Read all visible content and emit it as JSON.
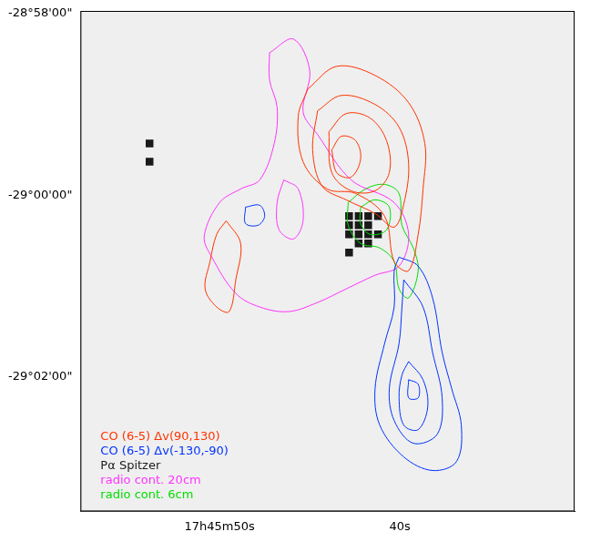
{
  "chart_data": {
    "type": "contour",
    "xlim": [
      57.71,
      30.32
    ],
    "ylim": [
      -1743.48,
      -1737.97
    ],
    "xticks": [
      {
        "value": 50,
        "label": "17h45m50s"
      },
      {
        "value": 40,
        "label": "40s"
      }
    ],
    "yticks": [
      {
        "value": -1738,
        "label": "-28°58'00\""
      },
      {
        "value": -1740,
        "label": "-29°00'00\""
      },
      {
        "value": -1742,
        "label": "-29°02'00\""
      }
    ],
    "grid": false,
    "legend": "bottom left",
    "series": [
      {
        "name": "CO (6-5) Δv(90,130)",
        "color": "#ff3300",
        "type": "contour",
        "values": [
          [
            [
              45.11,
              -1738.83
            ],
            [
              43.51,
              -1738.58
            ],
            [
              41.38,
              -1738.68
            ],
            [
              39.52,
              -1738.98
            ],
            [
              38.62,
              -1739.43
            ],
            [
              38.72,
              -1739.93
            ],
            [
              38.99,
              -1740.43
            ],
            [
              39.52,
              -1740.83
            ],
            [
              40.32,
              -1740.73
            ],
            [
              40.85,
              -1740.23
            ],
            [
              42.45,
              -1739.98
            ],
            [
              44.04,
              -1739.93
            ],
            [
              45.37,
              -1739.63
            ],
            [
              45.64,
              -1739.13
            ]
          ],
          [
            [
              44.57,
              -1739.07
            ],
            [
              43.24,
              -1738.9
            ],
            [
              41.38,
              -1739.0
            ],
            [
              40.05,
              -1739.25
            ],
            [
              39.52,
              -1739.65
            ],
            [
              39.79,
              -1740.1
            ],
            [
              40.32,
              -1740.35
            ],
            [
              41.38,
              -1740.2
            ],
            [
              42.98,
              -1740.05
            ],
            [
              44.31,
              -1739.9
            ],
            [
              44.84,
              -1739.5
            ]
          ],
          [
            [
              43.94,
              -1739.3
            ],
            [
              42.98,
              -1739.1
            ],
            [
              41.65,
              -1739.15
            ],
            [
              40.74,
              -1739.4
            ],
            [
              40.59,
              -1739.75
            ],
            [
              41.38,
              -1739.95
            ],
            [
              42.71,
              -1739.95
            ],
            [
              43.78,
              -1739.75
            ]
          ],
          [
            [
              43.78,
              -1739.5
            ],
            [
              43.24,
              -1739.35
            ],
            [
              42.45,
              -1739.4
            ],
            [
              42.18,
              -1739.6
            ],
            [
              42.71,
              -1739.8
            ],
            [
              43.51,
              -1739.75
            ]
          ],
          [
            [
              49.63,
              -1740.28
            ],
            [
              48.83,
              -1740.53
            ],
            [
              49.1,
              -1740.93
            ],
            [
              49.47,
              -1741.28
            ],
            [
              50.16,
              -1741.23
            ],
            [
              50.8,
              -1741.03
            ],
            [
              50.53,
              -1740.73
            ],
            [
              50.16,
              -1740.43
            ]
          ]
        ]
      },
      {
        "name": "CO (6-5) Δv(-130,-90)",
        "color": "#0033ff",
        "type": "contour",
        "values": [
          [
            [
              40.05,
              -1740.68
            ],
            [
              38.99,
              -1740.78
            ],
            [
              38.19,
              -1741.13
            ],
            [
              37.66,
              -1741.73
            ],
            [
              37.13,
              -1742.13
            ],
            [
              36.6,
              -1742.53
            ],
            [
              36.86,
              -1742.93
            ],
            [
              38.19,
              -1743.03
            ],
            [
              39.79,
              -1742.88
            ],
            [
              41.12,
              -1742.53
            ],
            [
              41.38,
              -1742.13
            ],
            [
              40.85,
              -1741.63
            ],
            [
              40.32,
              -1741.23
            ],
            [
              40.32,
              -1740.83
            ]
          ],
          [
            [
              39.79,
              -1740.93
            ],
            [
              38.72,
              -1741.23
            ],
            [
              38.19,
              -1741.73
            ],
            [
              37.66,
              -1742.23
            ],
            [
              37.93,
              -1742.63
            ],
            [
              39.26,
              -1742.73
            ],
            [
              40.32,
              -1742.48
            ],
            [
              40.59,
              -1742.13
            ],
            [
              40.05,
              -1741.63
            ],
            [
              39.89,
              -1741.23
            ]
          ],
          [
            [
              39.52,
              -1741.83
            ],
            [
              38.72,
              -1742.03
            ],
            [
              38.46,
              -1742.33
            ],
            [
              38.99,
              -1742.58
            ],
            [
              39.79,
              -1742.53
            ],
            [
              40.05,
              -1742.23
            ],
            [
              39.89,
              -1741.98
            ]
          ],
          [
            [
              39.52,
              -1742.03
            ],
            [
              38.99,
              -1742.08
            ],
            [
              38.99,
              -1742.23
            ],
            [
              39.52,
              -1742.23
            ]
          ],
          [
            [
              48.56,
              -1740.13
            ],
            [
              47.77,
              -1740.11
            ],
            [
              47.5,
              -1740.23
            ],
            [
              47.87,
              -1740.33
            ],
            [
              48.56,
              -1740.31
            ]
          ]
        ]
      },
      {
        "name": "Pα Spitzer",
        "color": "#1a1a1a",
        "type": "image",
        "marker": "square",
        "values": [
          [
            42.82,
            -1740.23
          ],
          [
            42.29,
            -1740.23
          ],
          [
            41.76,
            -1740.23
          ],
          [
            41.22,
            -1740.23
          ],
          [
            42.82,
            -1740.33
          ],
          [
            42.29,
            -1740.33
          ],
          [
            41.76,
            -1740.33
          ],
          [
            42.82,
            -1740.43
          ],
          [
            42.29,
            -1740.43
          ],
          [
            41.76,
            -1740.43
          ],
          [
            41.22,
            -1740.43
          ],
          [
            42.29,
            -1740.53
          ],
          [
            41.76,
            -1740.53
          ],
          [
            42.82,
            -1740.63
          ],
          [
            53.88,
            -1739.43
          ],
          [
            53.88,
            -1739.63
          ]
        ]
      },
      {
        "name": "radio cont. 20cm",
        "color": "#ff33ff",
        "type": "contour",
        "values": [
          [
            [
              47.23,
              -1738.43
            ],
            [
              45.9,
              -1738.28
            ],
            [
              45.0,
              -1738.63
            ],
            [
              45.37,
              -1739.08
            ],
            [
              44.57,
              -1739.33
            ],
            [
              42.71,
              -1739.83
            ],
            [
              40.32,
              -1740.08
            ],
            [
              39.52,
              -1740.43
            ],
            [
              40.05,
              -1740.78
            ],
            [
              41.38,
              -1740.88
            ],
            [
              42.98,
              -1741.03
            ],
            [
              44.57,
              -1741.18
            ],
            [
              46.17,
              -1741.28
            ],
            [
              47.77,
              -1741.23
            ],
            [
              49.1,
              -1741.08
            ],
            [
              50.43,
              -1740.68
            ],
            [
              50.85,
              -1740.45
            ],
            [
              50.0,
              -1740.08
            ],
            [
              48.83,
              -1739.93
            ],
            [
              47.77,
              -1739.83
            ],
            [
              46.97,
              -1739.43
            ],
            [
              46.81,
              -1739.03
            ],
            [
              47.23,
              -1738.73
            ]
          ],
          [
            [
              46.44,
              -1739.83
            ],
            [
              45.64,
              -1739.93
            ],
            [
              45.37,
              -1740.28
            ],
            [
              45.9,
              -1740.48
            ],
            [
              46.7,
              -1740.38
            ],
            [
              46.81,
              -1740.08
            ]
          ]
        ]
      },
      {
        "name": "radio cont. 6cm",
        "color": "#00dd00",
        "type": "contour",
        "values": [
          [
            [
              42.87,
              -1740.08
            ],
            [
              41.91,
              -1739.93
            ],
            [
              40.85,
              -1739.88
            ],
            [
              40.05,
              -1739.98
            ],
            [
              39.89,
              -1740.33
            ],
            [
              39.26,
              -1740.58
            ],
            [
              38.99,
              -1740.83
            ],
            [
              39.52,
              -1741.13
            ],
            [
              40.05,
              -1741.03
            ],
            [
              40.32,
              -1740.73
            ],
            [
              41.12,
              -1740.58
            ],
            [
              42.18,
              -1740.53
            ],
            [
              42.87,
              -1740.33
            ]
          ],
          [
            [
              42.18,
              -1740.13
            ],
            [
              41.38,
              -1740.05
            ],
            [
              40.59,
              -1740.13
            ],
            [
              40.74,
              -1740.38
            ],
            [
              41.65,
              -1740.43
            ],
            [
              42.18,
              -1740.31
            ]
          ]
        ]
      }
    ]
  }
}
